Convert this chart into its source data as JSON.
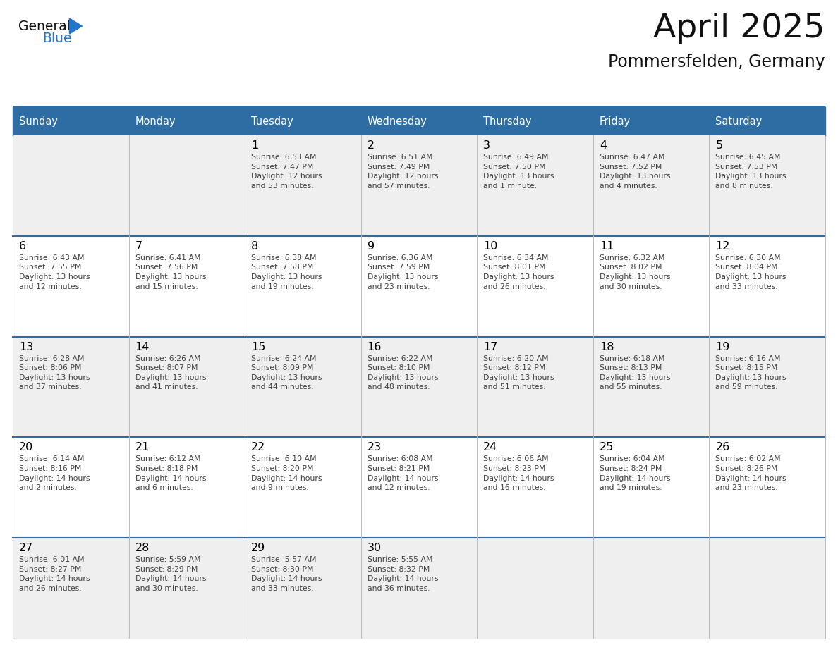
{
  "title": "April 2025",
  "subtitle": "Pommersfelden, Germany",
  "header_bg": "#2E6DA4",
  "header_text_color": "#FFFFFF",
  "cell_bg_odd": "#EFEFEF",
  "cell_bg_even": "#FFFFFF",
  "day_number_color": "#000000",
  "cell_text_color": "#404040",
  "grid_color": "#BBBBBB",
  "row_top_border_color": "#2E6DA4",
  "days_of_week": [
    "Sunday",
    "Monday",
    "Tuesday",
    "Wednesday",
    "Thursday",
    "Friday",
    "Saturday"
  ],
  "weeks": [
    [
      {
        "day": "",
        "info": ""
      },
      {
        "day": "",
        "info": ""
      },
      {
        "day": "1",
        "info": "Sunrise: 6:53 AM\nSunset: 7:47 PM\nDaylight: 12 hours\nand 53 minutes."
      },
      {
        "day": "2",
        "info": "Sunrise: 6:51 AM\nSunset: 7:49 PM\nDaylight: 12 hours\nand 57 minutes."
      },
      {
        "day": "3",
        "info": "Sunrise: 6:49 AM\nSunset: 7:50 PM\nDaylight: 13 hours\nand 1 minute."
      },
      {
        "day": "4",
        "info": "Sunrise: 6:47 AM\nSunset: 7:52 PM\nDaylight: 13 hours\nand 4 minutes."
      },
      {
        "day": "5",
        "info": "Sunrise: 6:45 AM\nSunset: 7:53 PM\nDaylight: 13 hours\nand 8 minutes."
      }
    ],
    [
      {
        "day": "6",
        "info": "Sunrise: 6:43 AM\nSunset: 7:55 PM\nDaylight: 13 hours\nand 12 minutes."
      },
      {
        "day": "7",
        "info": "Sunrise: 6:41 AM\nSunset: 7:56 PM\nDaylight: 13 hours\nand 15 minutes."
      },
      {
        "day": "8",
        "info": "Sunrise: 6:38 AM\nSunset: 7:58 PM\nDaylight: 13 hours\nand 19 minutes."
      },
      {
        "day": "9",
        "info": "Sunrise: 6:36 AM\nSunset: 7:59 PM\nDaylight: 13 hours\nand 23 minutes."
      },
      {
        "day": "10",
        "info": "Sunrise: 6:34 AM\nSunset: 8:01 PM\nDaylight: 13 hours\nand 26 minutes."
      },
      {
        "day": "11",
        "info": "Sunrise: 6:32 AM\nSunset: 8:02 PM\nDaylight: 13 hours\nand 30 minutes."
      },
      {
        "day": "12",
        "info": "Sunrise: 6:30 AM\nSunset: 8:04 PM\nDaylight: 13 hours\nand 33 minutes."
      }
    ],
    [
      {
        "day": "13",
        "info": "Sunrise: 6:28 AM\nSunset: 8:06 PM\nDaylight: 13 hours\nand 37 minutes."
      },
      {
        "day": "14",
        "info": "Sunrise: 6:26 AM\nSunset: 8:07 PM\nDaylight: 13 hours\nand 41 minutes."
      },
      {
        "day": "15",
        "info": "Sunrise: 6:24 AM\nSunset: 8:09 PM\nDaylight: 13 hours\nand 44 minutes."
      },
      {
        "day": "16",
        "info": "Sunrise: 6:22 AM\nSunset: 8:10 PM\nDaylight: 13 hours\nand 48 minutes."
      },
      {
        "day": "17",
        "info": "Sunrise: 6:20 AM\nSunset: 8:12 PM\nDaylight: 13 hours\nand 51 minutes."
      },
      {
        "day": "18",
        "info": "Sunrise: 6:18 AM\nSunset: 8:13 PM\nDaylight: 13 hours\nand 55 minutes."
      },
      {
        "day": "19",
        "info": "Sunrise: 6:16 AM\nSunset: 8:15 PM\nDaylight: 13 hours\nand 59 minutes."
      }
    ],
    [
      {
        "day": "20",
        "info": "Sunrise: 6:14 AM\nSunset: 8:16 PM\nDaylight: 14 hours\nand 2 minutes."
      },
      {
        "day": "21",
        "info": "Sunrise: 6:12 AM\nSunset: 8:18 PM\nDaylight: 14 hours\nand 6 minutes."
      },
      {
        "day": "22",
        "info": "Sunrise: 6:10 AM\nSunset: 8:20 PM\nDaylight: 14 hours\nand 9 minutes."
      },
      {
        "day": "23",
        "info": "Sunrise: 6:08 AM\nSunset: 8:21 PM\nDaylight: 14 hours\nand 12 minutes."
      },
      {
        "day": "24",
        "info": "Sunrise: 6:06 AM\nSunset: 8:23 PM\nDaylight: 14 hours\nand 16 minutes."
      },
      {
        "day": "25",
        "info": "Sunrise: 6:04 AM\nSunset: 8:24 PM\nDaylight: 14 hours\nand 19 minutes."
      },
      {
        "day": "26",
        "info": "Sunrise: 6:02 AM\nSunset: 8:26 PM\nDaylight: 14 hours\nand 23 minutes."
      }
    ],
    [
      {
        "day": "27",
        "info": "Sunrise: 6:01 AM\nSunset: 8:27 PM\nDaylight: 14 hours\nand 26 minutes."
      },
      {
        "day": "28",
        "info": "Sunrise: 5:59 AM\nSunset: 8:29 PM\nDaylight: 14 hours\nand 30 minutes."
      },
      {
        "day": "29",
        "info": "Sunrise: 5:57 AM\nSunset: 8:30 PM\nDaylight: 14 hours\nand 33 minutes."
      },
      {
        "day": "30",
        "info": "Sunrise: 5:55 AM\nSunset: 8:32 PM\nDaylight: 14 hours\nand 36 minutes."
      },
      {
        "day": "",
        "info": ""
      },
      {
        "day": "",
        "info": ""
      },
      {
        "day": "",
        "info": ""
      }
    ]
  ],
  "logo_general_color": "#111111",
  "logo_blue_color": "#2277CC",
  "line_separator_color": "#2E6DA4",
  "fig_width": 11.88,
  "fig_height": 9.18,
  "dpi": 100
}
